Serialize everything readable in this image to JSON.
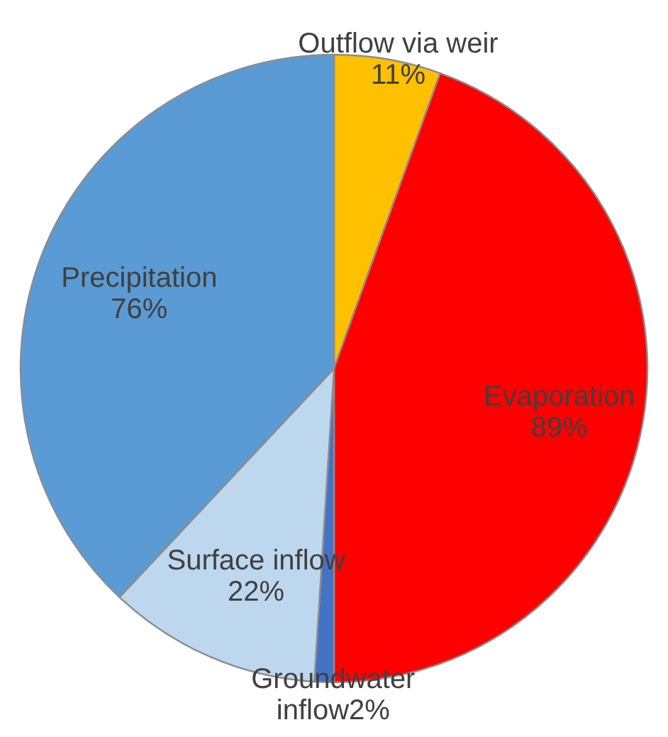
{
  "chart_data": {
    "type": "pie",
    "categories": [
      "Outflow via weir",
      "Evaporation",
      "Groundwater inflow",
      "Surface inflow",
      "Precipitation"
    ],
    "values": [
      11,
      89,
      2,
      22,
      76
    ],
    "value_labels": [
      "11%",
      "89%",
      "2%",
      "22%",
      "76%"
    ],
    "colors": [
      "#ffc000",
      "#ff0000",
      "#4472c4",
      "#bdd7ee",
      "#5b9bd5"
    ]
  }
}
